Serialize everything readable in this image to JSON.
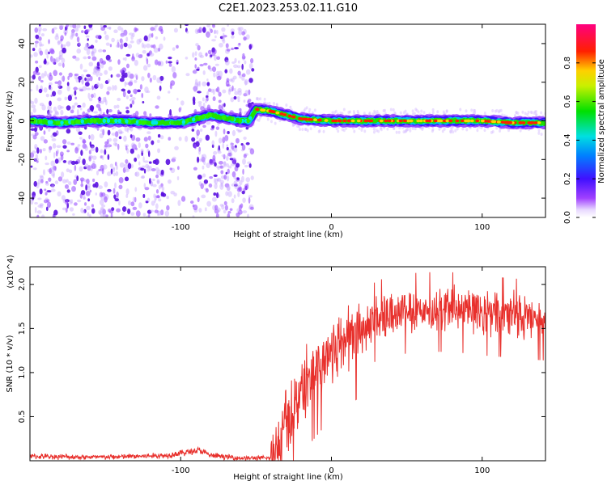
{
  "title": "C2E1.2023.253.02.11.G10",
  "chart_data": [
    {
      "type": "heatmap",
      "xlabel": "Height of straight line (km)",
      "ylabel": "Frequency (Hz)",
      "xlim": [
        -200,
        142
      ],
      "ylim": [
        -50,
        50
      ],
      "xticks": [
        -100,
        0,
        100
      ],
      "yticks": [
        -40,
        -20,
        0,
        20,
        40
      ],
      "colorbar": {
        "label": "Normalized spectral amplitude",
        "range": [
          0,
          1
        ],
        "ticks": [
          "0.0",
          "0.2",
          "0.4",
          "0.6",
          "0.8"
        ]
      },
      "ridge": [
        {
          "x": -200,
          "y": 0
        },
        {
          "x": -180,
          "y": -1
        },
        {
          "x": -160,
          "y": 0
        },
        {
          "x": -140,
          "y": 0
        },
        {
          "x": -120,
          "y": -1
        },
        {
          "x": -100,
          "y": -1
        },
        {
          "x": -90,
          "y": 1
        },
        {
          "x": -80,
          "y": 3
        },
        {
          "x": -60,
          "y": 0
        },
        {
          "x": -55,
          "y": 0
        },
        {
          "x": -50,
          "y": 6
        },
        {
          "x": -40,
          "y": 5
        },
        {
          "x": -30,
          "y": 3
        },
        {
          "x": -20,
          "y": 1
        },
        {
          "x": 0,
          "y": 0
        },
        {
          "x": 20,
          "y": 0
        },
        {
          "x": 40,
          "y": 0
        },
        {
          "x": 60,
          "y": 0
        },
        {
          "x": 80,
          "y": 0
        },
        {
          "x": 100,
          "y": 0
        },
        {
          "x": 120,
          "y": -1
        },
        {
          "x": 142,
          "y": -1
        }
      ],
      "noise_region_x": [
        -200,
        -52
      ]
    },
    {
      "type": "line",
      "xlabel": "Height of straight line (km)",
      "ylabel": "SNR (10 * v/v)",
      "scale_label": "(x10^4)",
      "xlim": [
        -200,
        142
      ],
      "ylim": [
        0,
        2.2
      ],
      "xticks": [
        -100,
        0,
        100
      ],
      "yticks": [
        0.5,
        1.0,
        1.5,
        2.0
      ],
      "series": [
        {
          "color": "#e8302c",
          "envelope": [
            {
              "x": -200,
              "y": 0.05
            },
            {
              "x": -150,
              "y": 0.04
            },
            {
              "x": -110,
              "y": 0.06
            },
            {
              "x": -95,
              "y": 0.1
            },
            {
              "x": -88,
              "y": 0.12
            },
            {
              "x": -80,
              "y": 0.06
            },
            {
              "x": -60,
              "y": 0.03
            },
            {
              "x": -40,
              "y": 0.03
            },
            {
              "x": -35,
              "y": 0.15
            },
            {
              "x": -30,
              "y": 0.45
            },
            {
              "x": -25,
              "y": 0.6
            },
            {
              "x": -20,
              "y": 0.8
            },
            {
              "x": -15,
              "y": 0.95
            },
            {
              "x": -10,
              "y": 1.05
            },
            {
              "x": -5,
              "y": 1.15
            },
            {
              "x": 0,
              "y": 1.25
            },
            {
              "x": 5,
              "y": 1.3
            },
            {
              "x": 10,
              "y": 1.4
            },
            {
              "x": 15,
              "y": 1.45
            },
            {
              "x": 20,
              "y": 1.5
            },
            {
              "x": 30,
              "y": 1.62
            },
            {
              "x": 40,
              "y": 1.68
            },
            {
              "x": 50,
              "y": 1.7
            },
            {
              "x": 60,
              "y": 1.72
            },
            {
              "x": 80,
              "y": 1.72
            },
            {
              "x": 100,
              "y": 1.68
            },
            {
              "x": 120,
              "y": 1.65
            },
            {
              "x": 142,
              "y": 1.62
            }
          ]
        }
      ]
    }
  ]
}
